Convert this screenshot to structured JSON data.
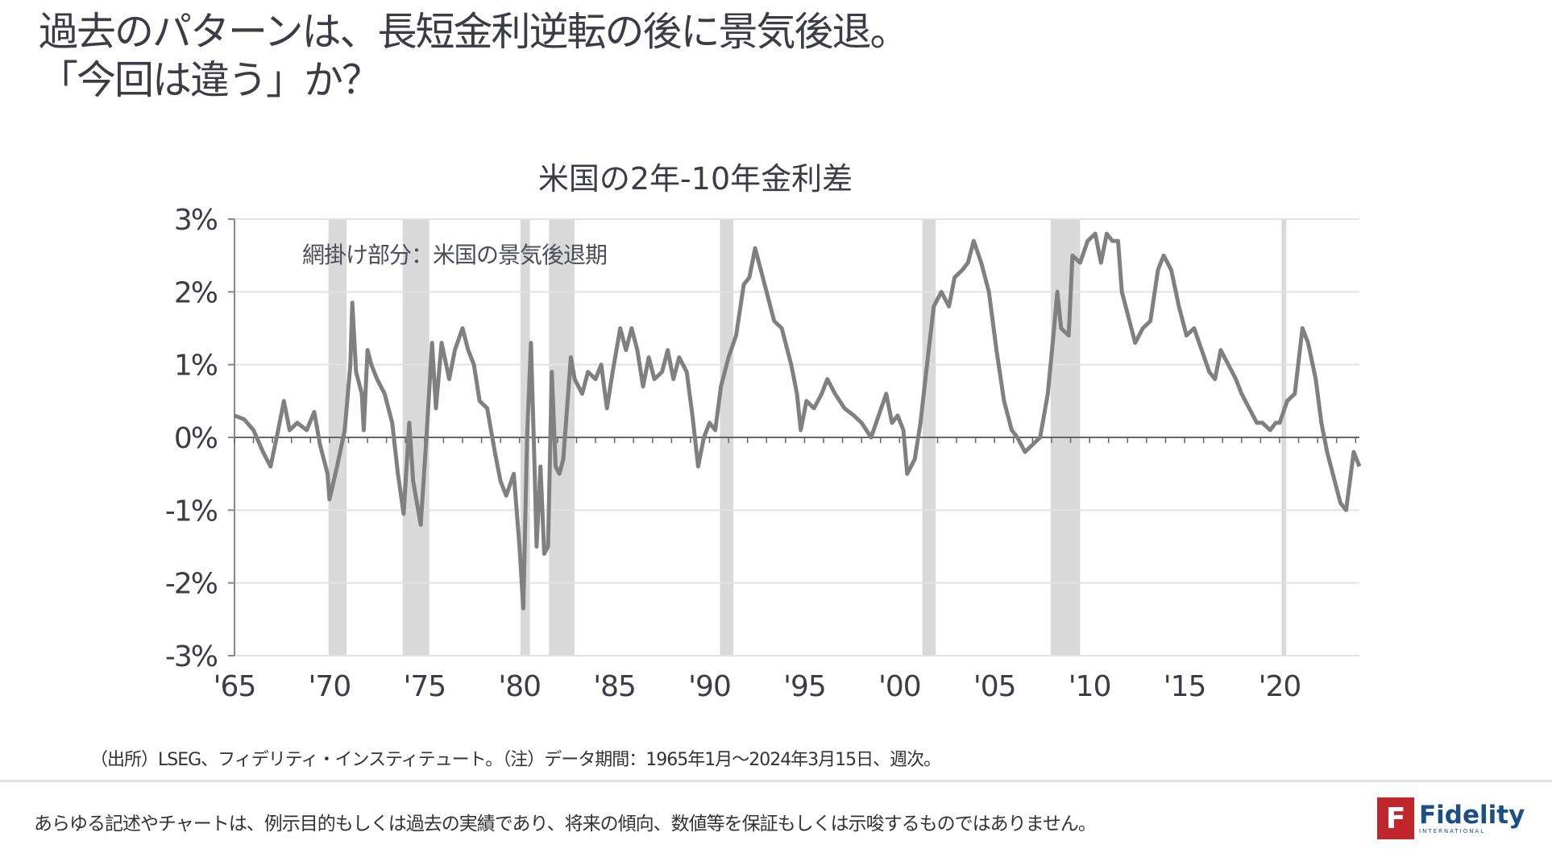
{
  "header": {
    "title_line1": "過去のパターンは、長短金利逆転の後に景気後退。",
    "title_line2": "「今回は違う」か？"
  },
  "chart_data": {
    "type": "line",
    "title": "米国の2年-10年金利差",
    "annotation": "網掛け部分：米国の景気後退期",
    "xlabel": "",
    "ylabel": "",
    "ylim": [
      -3,
      3
    ],
    "xlim": [
      1965,
      2024.2
    ],
    "y_ticks": [
      3,
      2,
      1,
      0,
      -1,
      -2,
      -3
    ],
    "y_tick_labels": [
      "3%",
      "2%",
      "1%",
      "0%",
      "-1%",
      "-2%",
      "-3%"
    ],
    "x_ticks": [
      1965,
      1970,
      1975,
      1980,
      1985,
      1990,
      1995,
      2000,
      2005,
      2010,
      2015,
      2020
    ],
    "x_tick_labels": [
      "'65",
      "'70",
      "'75",
      "'80",
      "'85",
      "'90",
      "'95",
      "'00",
      "'05",
      "'10",
      "'15",
      "'20"
    ],
    "grid": true,
    "line_color": "#808080",
    "recession_color": "#d9d9d9",
    "recessions": [
      [
        1969.95,
        1970.9
      ],
      [
        1973.85,
        1975.25
      ],
      [
        1980.05,
        1980.55
      ],
      [
        1981.55,
        1982.9
      ],
      [
        1990.55,
        1991.25
      ],
      [
        2001.2,
        2001.9
      ],
      [
        2007.95,
        2009.5
      ],
      [
        2020.1,
        2020.35
      ]
    ],
    "series": [
      {
        "name": "米国2年-10年金利差",
        "x": [
          1965.0,
          1965.5,
          1966.0,
          1966.5,
          1966.9,
          1967.3,
          1967.6,
          1967.9,
          1968.3,
          1968.8,
          1969.2,
          1969.5,
          1969.9,
          1970.0,
          1970.4,
          1970.8,
          1971.1,
          1971.2,
          1971.4,
          1971.7,
          1971.8,
          1972.0,
          1972.2,
          1972.5,
          1972.9,
          1973.3,
          1973.6,
          1973.9,
          1974.2,
          1974.4,
          1974.8,
          1975.1,
          1975.4,
          1975.6,
          1975.9,
          1976.3,
          1976.6,
          1977.0,
          1977.3,
          1977.6,
          1977.9,
          1978.3,
          1978.7,
          1979.0,
          1979.3,
          1979.7,
          1980.0,
          1980.2,
          1980.4,
          1980.6,
          1980.8,
          1980.9,
          1981.1,
          1981.3,
          1981.5,
          1981.7,
          1981.9,
          1982.1,
          1982.3,
          1982.5,
          1982.7,
          1982.9,
          1983.3,
          1983.6,
          1984.0,
          1984.3,
          1984.6,
          1984.9,
          1985.3,
          1985.6,
          1985.9,
          1986.2,
          1986.5,
          1986.8,
          1987.1,
          1987.5,
          1987.8,
          1988.1,
          1988.4,
          1988.8,
          1989.1,
          1989.4,
          1989.7,
          1990.0,
          1990.3,
          1990.6,
          1991.0,
          1991.4,
          1991.8,
          1992.1,
          1992.4,
          1992.7,
          1993.0,
          1993.4,
          1993.8,
          1994.3,
          1994.6,
          1994.8,
          1995.1,
          1995.5,
          1995.9,
          1996.2,
          1996.6,
          1997.1,
          1997.6,
          1998.0,
          1998.5,
          1998.9,
          1999.3,
          1999.6,
          1999.9,
          2000.2,
          2000.4,
          2000.8,
          2001.1,
          2001.4,
          2001.8,
          2002.2,
          2002.6,
          2002.9,
          2003.3,
          2003.6,
          2003.9,
          2004.3,
          2004.7,
          2005.1,
          2005.5,
          2005.9,
          2006.2,
          2006.6,
          2007.0,
          2007.4,
          2007.8,
          2008.1,
          2008.3,
          2008.5,
          2008.9,
          2009.1,
          2009.5,
          2009.9,
          2010.3,
          2010.6,
          2010.9,
          2011.2,
          2011.5,
          2011.7,
          2012.0,
          2012.4,
          2012.8,
          2013.2,
          2013.6,
          2013.9,
          2014.3,
          2014.7,
          2015.1,
          2015.5,
          2015.9,
          2016.3,
          2016.6,
          2016.9,
          2017.3,
          2017.7,
          2018.0,
          2018.4,
          2018.8,
          2019.1,
          2019.5,
          2019.8,
          2020.0,
          2020.4,
          2020.8,
          2021.2,
          2021.5,
          2021.9,
          2022.2,
          2022.5,
          2022.8,
          2023.2,
          2023.5,
          2023.8,
          2023.9,
          2024.2
        ],
        "values": [
          0.3,
          0.25,
          0.1,
          -0.2,
          -0.4,
          0.1,
          0.5,
          0.1,
          0.2,
          0.1,
          0.35,
          -0.1,
          -0.5,
          -0.85,
          -0.4,
          0.1,
          1.0,
          1.85,
          0.9,
          0.6,
          0.1,
          1.2,
          1.0,
          0.8,
          0.6,
          0.2,
          -0.5,
          -1.05,
          0.2,
          -0.6,
          -1.2,
          0.0,
          1.3,
          0.4,
          1.3,
          0.8,
          1.2,
          1.5,
          1.2,
          1.0,
          0.5,
          0.4,
          -0.2,
          -0.6,
          -0.8,
          -0.5,
          -1.5,
          -2.35,
          0.0,
          1.3,
          -0.5,
          -1.5,
          -0.4,
          -1.6,
          -1.5,
          0.9,
          -0.4,
          -0.5,
          -0.3,
          0.4,
          1.1,
          0.8,
          0.6,
          0.9,
          0.8,
          1.0,
          0.4,
          0.9,
          1.5,
          1.2,
          1.5,
          1.2,
          0.7,
          1.1,
          0.8,
          0.9,
          1.2,
          0.8,
          1.1,
          0.9,
          0.3,
          -0.4,
          0.0,
          0.2,
          0.1,
          0.7,
          1.1,
          1.4,
          2.1,
          2.2,
          2.6,
          2.3,
          2.0,
          1.6,
          1.5,
          1.0,
          0.6,
          0.1,
          0.5,
          0.4,
          0.6,
          0.8,
          0.6,
          0.4,
          0.3,
          0.2,
          0.0,
          0.3,
          0.6,
          0.2,
          0.3,
          0.1,
          -0.5,
          -0.3,
          0.2,
          0.9,
          1.8,
          2.0,
          1.8,
          2.2,
          2.3,
          2.4,
          2.7,
          2.4,
          2.0,
          1.2,
          0.5,
          0.1,
          0.0,
          -0.2,
          -0.1,
          0.0,
          0.6,
          1.4,
          2.0,
          1.5,
          1.4,
          2.5,
          2.4,
          2.7,
          2.8,
          2.4,
          2.8,
          2.7,
          2.7,
          2.0,
          1.7,
          1.3,
          1.5,
          1.6,
          2.3,
          2.5,
          2.3,
          1.8,
          1.4,
          1.5,
          1.2,
          0.9,
          0.8,
          1.2,
          1.0,
          0.8,
          0.6,
          0.4,
          0.2,
          0.2,
          0.1,
          0.2,
          0.2,
          0.5,
          0.6,
          1.5,
          1.3,
          0.8,
          0.2,
          -0.2,
          -0.5,
          -0.9,
          -1.0,
          -0.4,
          -0.2,
          -0.4
        ]
      }
    ]
  },
  "footer": {
    "source": "（出所）LSEG、フィデリティ・インスティテュート。（注）データ期間：1965年1月～2024年3月15日、週次。",
    "disclaimer": "あらゆる記述やチャートは、例示目的もしくは過去の実績であり、将来の傾向、数値等を保証もしくは示唆するものではありません。",
    "logo_name": "Fidelity",
    "logo_sub": "INTERNATIONAL",
    "logo_mark": "F"
  }
}
